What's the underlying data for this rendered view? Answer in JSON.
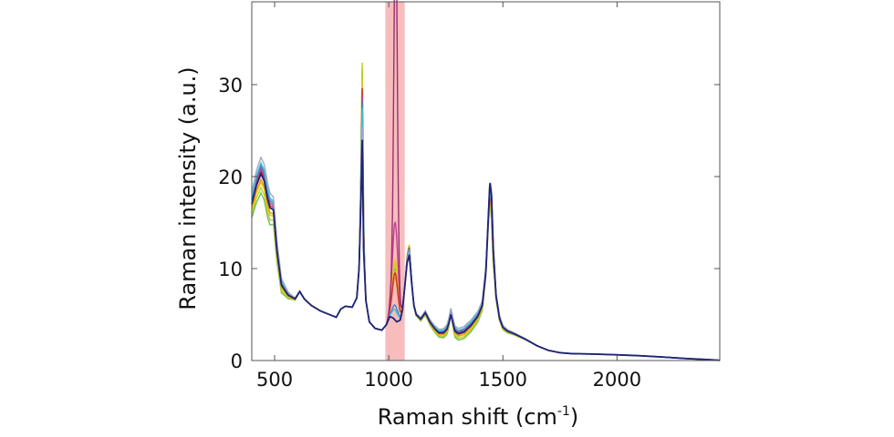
{
  "chart_data": {
    "type": "line",
    "xlabel": "Raman shift (cm",
    "xlabel_sup": "-1",
    "xlabel_close": ")",
    "ylabel": "Raman intensity (a.u.)",
    "xlim": [
      400,
      2450
    ],
    "ylim": [
      0,
      39
    ],
    "xticks": [
      500,
      1000,
      1500,
      2000
    ],
    "yticks": [
      0,
      10,
      20,
      30
    ],
    "grid": false,
    "highlight_band": {
      "x_from": 985,
      "x_to": 1070,
      "color": "#f4a7a7"
    },
    "base_curve": {
      "x": [
        400,
        420,
        440,
        455,
        470,
        480,
        495,
        510,
        530,
        560,
        590,
        610,
        630,
        660,
        700,
        740,
        770,
        790,
        810,
        840,
        860,
        870,
        878,
        884,
        890,
        900,
        915,
        940,
        970,
        990,
        1005,
        1020,
        1035,
        1050,
        1060,
        1070,
        1080,
        1090,
        1100,
        1110,
        1120,
        1140,
        1160,
        1180,
        1200,
        1220,
        1240,
        1255,
        1265,
        1272,
        1280,
        1290,
        1305,
        1330,
        1360,
        1390,
        1410,
        1425,
        1435,
        1443,
        1450,
        1458,
        1470,
        1485,
        1500,
        1520,
        1550,
        1600,
        1650,
        1700,
        1750,
        1800,
        1900,
        2000,
        2100,
        2200,
        2300,
        2400,
        2450
      ],
      "y": [
        17.0,
        19.0,
        20.3,
        19.5,
        17.5,
        16.6,
        16.4,
        12.0,
        8.2,
        7.1,
        6.7,
        7.5,
        6.7,
        6.0,
        5.4,
        5.0,
        4.7,
        5.6,
        5.9,
        5.8,
        6.8,
        10.0,
        17.0,
        24.0,
        12.0,
        6.5,
        4.2,
        3.5,
        3.3,
        3.9,
        4.8,
        4.6,
        4.2,
        4.4,
        5.5,
        8.0,
        10.6,
        11.5,
        8.5,
        6.0,
        5.0,
        4.5,
        5.2,
        4.2,
        3.5,
        3.0,
        3.0,
        3.4,
        4.2,
        5.0,
        4.2,
        3.2,
        2.9,
        3.1,
        3.8,
        4.8,
        6.0,
        9.5,
        15.0,
        19.5,
        18.0,
        12.0,
        7.0,
        4.6,
        3.6,
        3.2,
        2.9,
        2.3,
        1.6,
        1.1,
        0.85,
        0.75,
        0.7,
        0.62,
        0.52,
        0.38,
        0.22,
        0.1,
        0.02
      ]
    },
    "series": [
      {
        "color": "#70c050",
        "peak_scale": 1.55,
        "base_offset": -0.7,
        "fill_1000": 10.0,
        "spike_1030": 0
      },
      {
        "color": "#b8d020",
        "peak_scale": 1.6,
        "base_offset": -0.5,
        "fill_1000": 10.5,
        "spike_1030": 0
      },
      {
        "color": "#f0c020",
        "peak_scale": 1.45,
        "base_offset": -0.3,
        "fill_1000": 11.0,
        "spike_1030": 0
      },
      {
        "color": "#e8a000",
        "peak_scale": 1.35,
        "base_offset": -0.2,
        "fill_1000": 9.0,
        "spike_1030": 0
      },
      {
        "color": "#c83030",
        "peak_scale": 1.4,
        "base_offset": 0.1,
        "fill_1000": 9.5,
        "spike_1030": 0
      },
      {
        "color": "#c04090",
        "peak_scale": 1.35,
        "base_offset": 0.2,
        "fill_1000": 15.0,
        "spike_1030": 0
      },
      {
        "color": "#4080d0",
        "peak_scale": 1.3,
        "base_offset": 0.3,
        "fill_1000": 6.0,
        "spike_1030": 0
      },
      {
        "color": "#40c0d0",
        "peak_scale": 1.25,
        "base_offset": 0.4,
        "fill_1000": 5.5,
        "spike_1030": 0
      },
      {
        "color": "#a0a8c8",
        "peak_scale": 1.1,
        "base_offset": 0.6,
        "fill_1000": 4.8,
        "spike_1030": 0
      },
      {
        "color": "#9a3070",
        "peak_scale": 1.0,
        "base_offset": 0.0,
        "fill_1000": 15.0,
        "spike_1030": 38.8
      },
      {
        "color": "#1e2478",
        "peak_scale": 1.0,
        "base_offset": 0.0,
        "fill_1000": 4.8,
        "spike_1030": 0
      }
    ]
  }
}
